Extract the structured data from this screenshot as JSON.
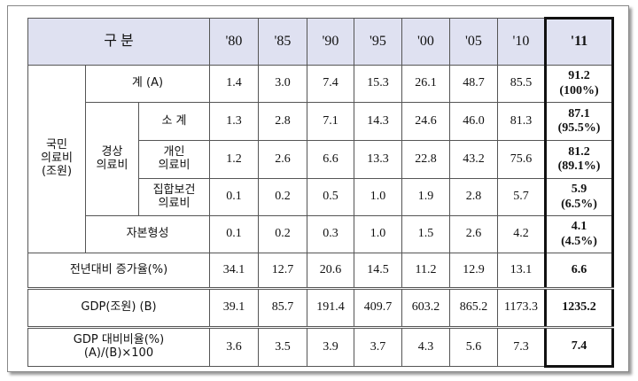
{
  "table": {
    "corner": "구 분",
    "years": [
      "'80",
      "'85",
      "'90",
      "'95",
      "'00",
      "'05",
      "'10",
      "'11"
    ],
    "group": "국민\n의료비\n(조원)",
    "subgroup": "경상\n의료비",
    "rows": [
      {
        "label": "계 (A)",
        "values": [
          "1.4",
          "3.0",
          "7.4",
          "15.3",
          "26.1",
          "48.7",
          "85.5",
          "91.2\n(100%)"
        ]
      },
      {
        "label": "소 계",
        "values": [
          "1.3",
          "2.8",
          "7.1",
          "14.3",
          "24.6",
          "46.0",
          "81.3",
          "87.1\n(95.5%)"
        ]
      },
      {
        "label": "개인\n의료비",
        "values": [
          "1.2",
          "2.6",
          "6.6",
          "13.3",
          "22.8",
          "43.2",
          "75.6",
          "81.2\n(89.1%)"
        ]
      },
      {
        "label": "집합보건\n의료비",
        "values": [
          "0.1",
          "0.2",
          "0.5",
          "1.0",
          "1.9",
          "2.8",
          "5.7",
          "5.9\n(6.5%)"
        ]
      },
      {
        "label": "자본형성",
        "values": [
          "0.1",
          "0.2",
          "0.3",
          "1.0",
          "1.5",
          "2.6",
          "4.2",
          "4.1\n(4.5%)"
        ]
      },
      {
        "label": "전년대비 증가율(%)",
        "values": [
          "34.1",
          "12.7",
          "20.6",
          "14.5",
          "11.2",
          "12.9",
          "13.1",
          "6.6"
        ]
      },
      {
        "label": "GDP(조원) (B)",
        "values": [
          "39.1",
          "85.7",
          "191.4",
          "409.7",
          "603.2",
          "865.2",
          "1173.3",
          "1235.2"
        ]
      },
      {
        "label": "GDP 대비비율(%)\n(A)/(B)×100",
        "values": [
          "3.6",
          "3.5",
          "3.9",
          "3.7",
          "4.3",
          "5.6",
          "7.3",
          "7.4"
        ]
      }
    ]
  }
}
